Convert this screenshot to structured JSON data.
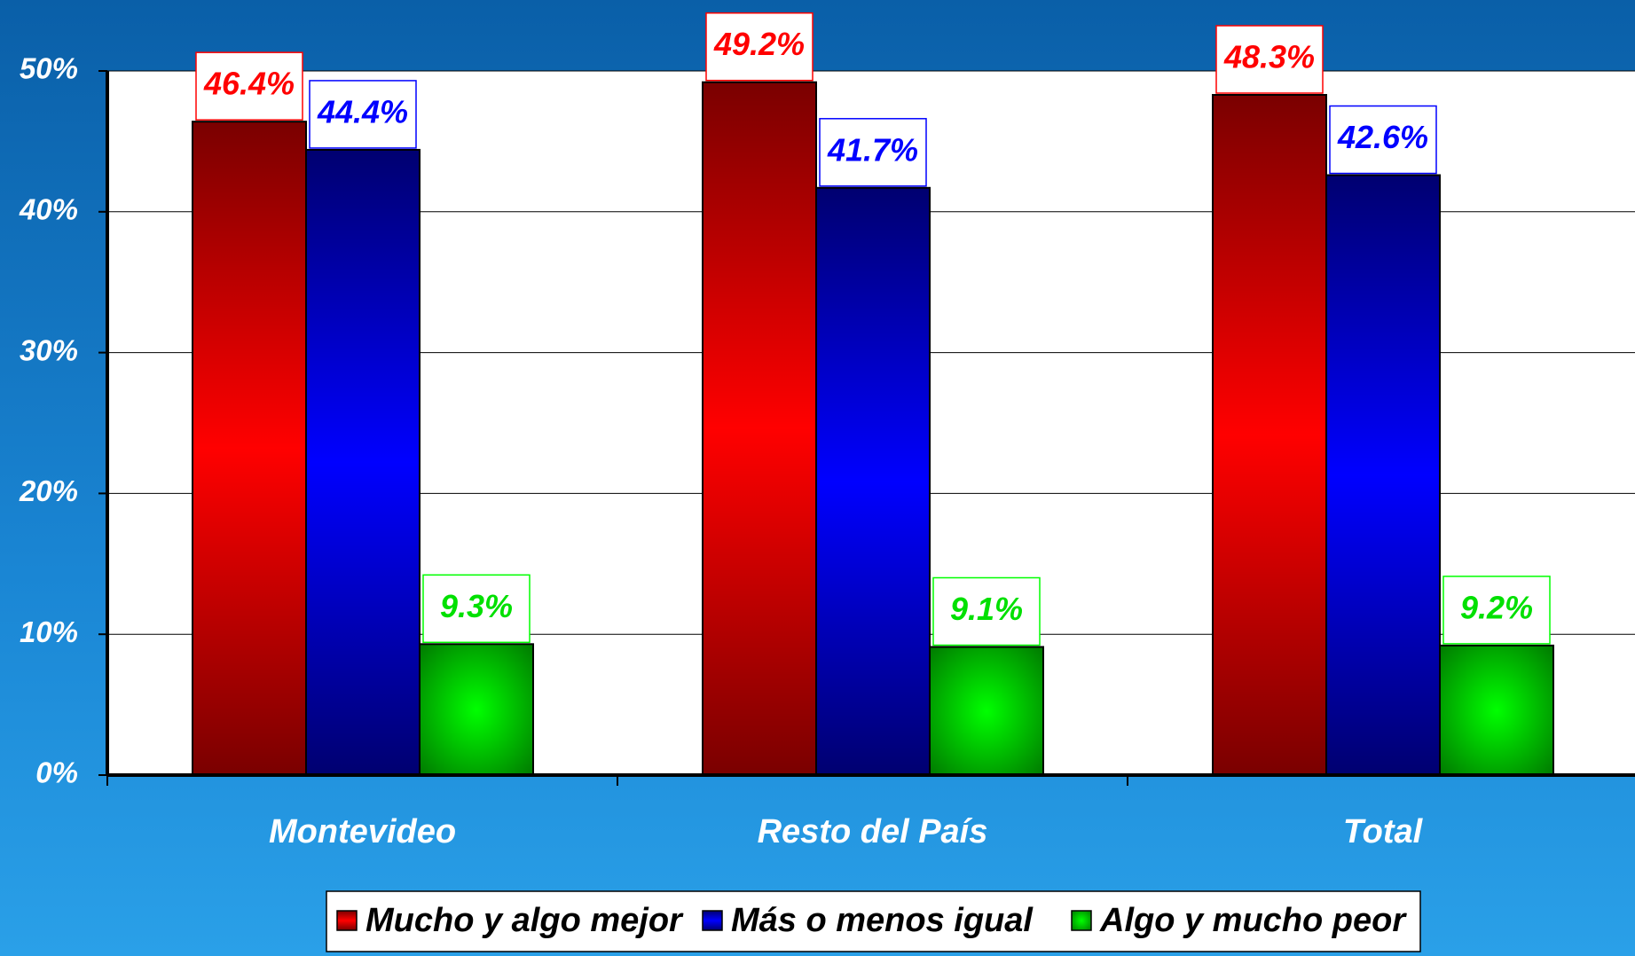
{
  "chart_data": {
    "type": "bar",
    "categories": [
      "Montevideo",
      "Resto del País",
      "Total"
    ],
    "series": [
      {
        "name": "Mucho y algo mejor",
        "color": "#ff0000",
        "values": [
          46.4,
          49.2,
          48.3
        ],
        "value_labels": [
          "46.4%",
          "49.2%",
          "48.3%"
        ]
      },
      {
        "name": "Más o menos igual",
        "color": "#0000ff",
        "values": [
          44.4,
          41.7,
          42.6
        ],
        "value_labels": [
          "44.4%",
          "41.7%",
          "42.6%"
        ]
      },
      {
        "name": "Algo y mucho  peor",
        "color": "#00ff00",
        "values": [
          9.3,
          9.1,
          9.2
        ],
        "value_labels": [
          "9.3%",
          "9.1%",
          "9.2%"
        ]
      }
    ],
    "ylim": [
      0,
      50
    ],
    "yticks": [
      {
        "value": 0,
        "label": "0%"
      },
      {
        "value": 10,
        "label": "10%"
      },
      {
        "value": 20,
        "label": "20%"
      },
      {
        "value": 30,
        "label": "30%"
      },
      {
        "value": 40,
        "label": "40%"
      },
      {
        "value": 50,
        "label": "50%"
      }
    ],
    "grid": true,
    "legend": "bottom"
  }
}
